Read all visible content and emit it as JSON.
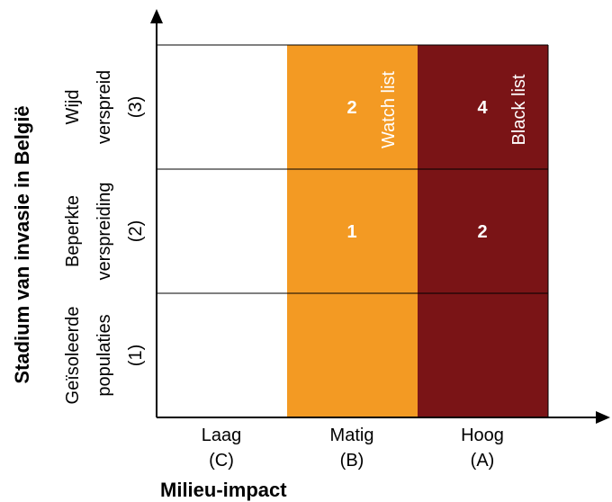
{
  "y_axis": {
    "title": "Stadium van invasie in België",
    "rows": [
      {
        "line1": "Wijd",
        "line2": "verspreid",
        "code": "(3)"
      },
      {
        "line1": "Beperkte",
        "line2": "verspreiding",
        "code": "(2)"
      },
      {
        "line1": "Geïsoleerde",
        "line2": "populaties",
        "code": "(1)"
      }
    ]
  },
  "x_axis": {
    "title": "Milieu-impact",
    "columns": [
      {
        "label": "Laag",
        "code": "(C)"
      },
      {
        "label": "Matig",
        "code": "(B)"
      },
      {
        "label": "Hoog",
        "code": "(A)"
      }
    ]
  },
  "cells": {
    "matig_wijd": "2",
    "hoog_wijd": "4",
    "matig_beperkt": "1",
    "hoog_beperkt": "2"
  },
  "lists": {
    "watch": "Watch list",
    "black": "Black list"
  },
  "colors": {
    "laag": "#ffffff",
    "matig": "#f39a23",
    "hoog": "#7a1416",
    "grid": "#000000"
  }
}
